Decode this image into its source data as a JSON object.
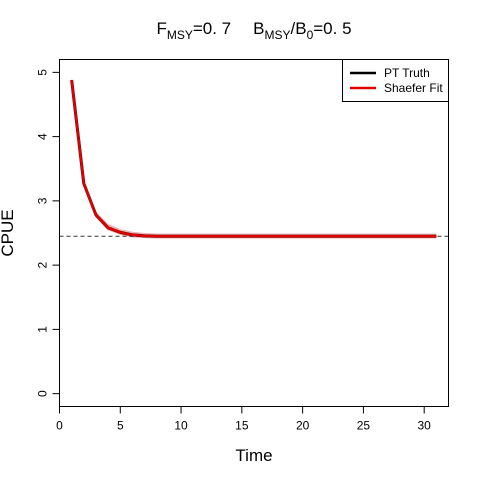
{
  "chart_data": {
    "type": "line",
    "title": {
      "f_main": "F",
      "f_sub": "MSY",
      "f_value": "=0. 7",
      "b_main": "B",
      "b_sub": "MSY",
      "b_slash": "/B",
      "b_sub0": "0",
      "b_value": "=0. 5"
    },
    "xlabel": "Time",
    "ylabel": "CPUE",
    "xlim": [
      0,
      32
    ],
    "ylim": [
      -0.2,
      5.2
    ],
    "xticks": [
      0,
      5,
      10,
      15,
      20,
      25,
      30
    ],
    "yticks": [
      0,
      1,
      2,
      3,
      4,
      5
    ],
    "reference_line": {
      "y": 2.45,
      "style": "dashed",
      "color": "#333333"
    },
    "legend": {
      "position": "top-right"
    },
    "x": [
      1,
      2,
      3,
      4,
      5,
      6,
      7,
      8,
      9,
      10,
      11,
      12,
      13,
      14,
      15,
      16,
      17,
      18,
      19,
      20,
      21,
      22,
      23,
      24,
      25,
      26,
      27,
      28,
      29,
      30,
      31
    ],
    "series": [
      {
        "name": "PT Truth",
        "color": "#000000",
        "values": [
          4.88,
          3.27,
          2.78,
          2.58,
          2.51,
          2.47,
          2.455,
          2.45,
          2.45,
          2.45,
          2.45,
          2.45,
          2.45,
          2.45,
          2.45,
          2.45,
          2.45,
          2.45,
          2.45,
          2.45,
          2.45,
          2.45,
          2.45,
          2.45,
          2.45,
          2.45,
          2.45,
          2.45,
          2.45,
          2.45,
          2.45
        ]
      },
      {
        "name": "Shaefer Fit",
        "color": "#e00000",
        "band_color": "#f4a0a0",
        "values": [
          4.88,
          3.27,
          2.78,
          2.58,
          2.51,
          2.47,
          2.455,
          2.45,
          2.45,
          2.45,
          2.45,
          2.45,
          2.45,
          2.45,
          2.45,
          2.45,
          2.45,
          2.45,
          2.45,
          2.45,
          2.45,
          2.45,
          2.45,
          2.45,
          2.45,
          2.45,
          2.45,
          2.45,
          2.45,
          2.45,
          2.45
        ],
        "band_lower": [
          4.84,
          3.23,
          2.74,
          2.54,
          2.47,
          2.43,
          2.42,
          2.415,
          2.415,
          2.415,
          2.415,
          2.415,
          2.415,
          2.415,
          2.415,
          2.415,
          2.415,
          2.415,
          2.415,
          2.415,
          2.415,
          2.415,
          2.415,
          2.415,
          2.415,
          2.415,
          2.415,
          2.415,
          2.415,
          2.415,
          2.415
        ],
        "band_upper": [
          4.92,
          3.32,
          2.83,
          2.64,
          2.56,
          2.52,
          2.5,
          2.49,
          2.49,
          2.49,
          2.49,
          2.49,
          2.49,
          2.49,
          2.49,
          2.49,
          2.49,
          2.49,
          2.49,
          2.49,
          2.49,
          2.49,
          2.49,
          2.49,
          2.49,
          2.49,
          2.49,
          2.49,
          2.49,
          2.49,
          2.49
        ]
      }
    ]
  }
}
